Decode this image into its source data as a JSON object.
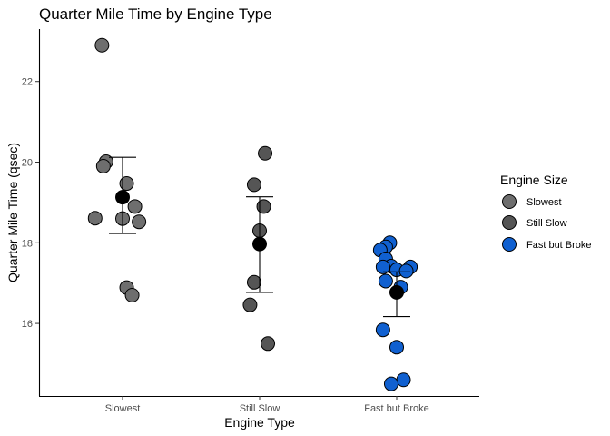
{
  "chart_data": {
    "type": "scatter",
    "title": "Quarter Mile Time by Engine Type",
    "xlabel": "Engine Type",
    "ylabel": "Quarter Mile Time (qsec)",
    "categories": [
      "Slowest",
      "Still Slow",
      "Fast but Broke"
    ],
    "ylim": [
      14.2,
      23.3
    ],
    "yticks": [
      16,
      18,
      20,
      22
    ],
    "grid": false,
    "legend": {
      "title": "Engine Size",
      "placement": "right",
      "entries": [
        {
          "label": "Slowest",
          "color": "#6e6e6e"
        },
        {
          "label": "Still Slow",
          "color": "#555555"
        },
        {
          "label": "Fast but Broke",
          "color": "#1060d0"
        }
      ]
    },
    "series": [
      {
        "category": "Slowest",
        "color": "#6e6e6e",
        "points": [
          {
            "x": -0.15,
            "y": 22.9
          },
          {
            "x": -0.12,
            "y": 20.01
          },
          {
            "x": -0.14,
            "y": 19.9
          },
          {
            "x": 0.03,
            "y": 19.47
          },
          {
            "x": 0.09,
            "y": 18.9
          },
          {
            "x": -0.2,
            "y": 18.61
          },
          {
            "x": 0.0,
            "y": 18.6
          },
          {
            "x": 0.12,
            "y": 18.52
          },
          {
            "x": 0.03,
            "y": 16.89
          },
          {
            "x": 0.07,
            "y": 16.7
          }
        ],
        "mean": 19.13,
        "error": [
          18.23,
          20.12
        ]
      },
      {
        "category": "Still Slow",
        "color": "#555555",
        "points": [
          {
            "x": 0.04,
            "y": 20.22
          },
          {
            "x": -0.04,
            "y": 19.44
          },
          {
            "x": 0.03,
            "y": 18.9
          },
          {
            "x": 0.0,
            "y": 18.3
          },
          {
            "x": -0.04,
            "y": 17.02
          },
          {
            "x": -0.07,
            "y": 16.46
          },
          {
            "x": 0.06,
            "y": 15.5
          }
        ],
        "mean": 17.97,
        "error": [
          16.77,
          19.14
        ]
      },
      {
        "category": "Fast but Broke",
        "color": "#1060d0",
        "points": [
          {
            "x": -0.05,
            "y": 18.0
          },
          {
            "x": -0.08,
            "y": 17.9
          },
          {
            "x": -0.12,
            "y": 17.82
          },
          {
            "x": -0.08,
            "y": 17.6
          },
          {
            "x": -0.04,
            "y": 17.42
          },
          {
            "x": 0.1,
            "y": 17.4
          },
          {
            "x": -0.1,
            "y": 17.4
          },
          {
            "x": 0.0,
            "y": 17.33
          },
          {
            "x": 0.07,
            "y": 17.3
          },
          {
            "x": -0.08,
            "y": 17.05
          },
          {
            "x": 0.03,
            "y": 16.9
          },
          {
            "x": -0.1,
            "y": 15.84
          },
          {
            "x": 0.0,
            "y": 15.41
          },
          {
            "x": 0.05,
            "y": 14.6
          },
          {
            "x": -0.04,
            "y": 14.5
          }
        ],
        "mean": 16.77,
        "error": [
          16.17,
          17.28
        ]
      }
    ]
  }
}
